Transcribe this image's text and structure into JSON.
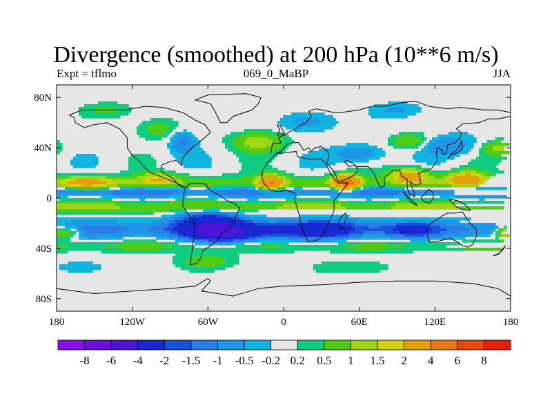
{
  "title": "Divergence (smoothed) at 200 hPa (10**6 m/s)",
  "subtitle_left": "Expt = tflmo",
  "subtitle_center": "069_0_MaBP",
  "subtitle_right": "JJA",
  "axes": {
    "x_ticks": [
      {
        "lon": -180,
        "label": "180"
      },
      {
        "lon": -120,
        "label": "120W"
      },
      {
        "lon": -60,
        "label": "60W"
      },
      {
        "lon": 0,
        "label": "0"
      },
      {
        "lon": 60,
        "label": "60E"
      },
      {
        "lon": 120,
        "label": "120E"
      },
      {
        "lon": 180,
        "label": "180"
      }
    ],
    "y_ticks": [
      {
        "lat": 80,
        "label": "80N"
      },
      {
        "lat": 40,
        "label": "40N"
      },
      {
        "lat": 0,
        "label": "0"
      },
      {
        "lat": -40,
        "label": "40S"
      },
      {
        "lat": -80,
        "label": "80S"
      }
    ],
    "lon_range": [
      -180,
      180
    ],
    "lat_range": [
      -90,
      90
    ]
  },
  "colorbar": {
    "colors": [
      "#8a10e6",
      "#6a10dc",
      "#4c14d8",
      "#1a28d2",
      "#1850e0",
      "#2a7ce6",
      "#1f96e6",
      "#10b4e0",
      "#e6e6e6",
      "#10cc80",
      "#50cc14",
      "#9ed614",
      "#d2d20a",
      "#e6a00a",
      "#e67a14",
      "#e64a0a",
      "#e61e0a"
    ],
    "labels": [
      "-8",
      "-6",
      "-4",
      "-2",
      "-1.5",
      "-1",
      "-0.5",
      "-0.2",
      "0.2",
      "0.5",
      "1",
      "1.5",
      "2",
      "4",
      "6",
      "8"
    ]
  },
  "field": {
    "levels": [
      -8,
      -6,
      -4,
      -2,
      -1.5,
      -1,
      -0.5,
      -0.2,
      0.2,
      0.5,
      1,
      1.5,
      2,
      4,
      6,
      8
    ],
    "bands": [
      {
        "lat": 5,
        "width": 4,
        "amp": -1.4
      },
      {
        "lat": -7,
        "width": 5,
        "amp": 1.1
      },
      {
        "lat": -25,
        "width": 7,
        "amp": -1.2
      },
      {
        "lat": 12,
        "width": 6,
        "amp": 0.8
      },
      {
        "lat": -38,
        "width": 5,
        "amp": 0.6
      }
    ],
    "blobs": [
      {
        "lon": -155,
        "lat": 12,
        "slon": 25,
        "slat": 5,
        "amp": 1.8
      },
      {
        "lon": -100,
        "lat": 15,
        "slon": 15,
        "slat": 5,
        "amp": 1.6
      },
      {
        "lon": -10,
        "lat": 12,
        "slon": 10,
        "slat": 6,
        "amp": 3.5
      },
      {
        "lon": 50,
        "lat": 12,
        "slon": 10,
        "slat": 6,
        "amp": 4.5
      },
      {
        "lon": 100,
        "lat": 18,
        "slon": 15,
        "slat": 6,
        "amp": 2.5
      },
      {
        "lon": 145,
        "lat": 15,
        "slon": 15,
        "slat": 6,
        "amp": 2.5
      },
      {
        "lon": 175,
        "lat": -27,
        "slon": 8,
        "slat": 5,
        "amp": 2.2
      },
      {
        "lon": -170,
        "lat": -27,
        "slon": 10,
        "slat": 5,
        "amp": 1.8
      },
      {
        "lon": -45,
        "lat": -27,
        "slon": 28,
        "slat": 8,
        "amp": -3.5
      },
      {
        "lon": -60,
        "lat": -18,
        "slon": 25,
        "slat": 10,
        "amp": -2.2
      },
      {
        "lon": 30,
        "lat": -25,
        "slon": 35,
        "slat": 8,
        "amp": -1.8
      },
      {
        "lon": 100,
        "lat": -25,
        "slon": 20,
        "slat": 6,
        "amp": -1.2
      },
      {
        "lon": -20,
        "lat": 45,
        "slon": 20,
        "slat": 8,
        "amp": 1.4
      },
      {
        "lon": -80,
        "lat": 45,
        "slon": 10,
        "slat": 10,
        "amp": -1.1
      },
      {
        "lon": 130,
        "lat": 42,
        "slon": 20,
        "slat": 8,
        "amp": -1.0
      },
      {
        "lon": 170,
        "lat": 40,
        "slon": 12,
        "slat": 6,
        "amp": 1.1
      },
      {
        "lon": 60,
        "lat": 35,
        "slon": 20,
        "slat": 7,
        "amp": -1.0
      },
      {
        "lon": 100,
        "lat": 45,
        "slon": 15,
        "slat": 6,
        "amp": 1.0
      },
      {
        "lon": -100,
        "lat": 55,
        "slon": 18,
        "slat": 8,
        "amp": 0.8
      },
      {
        "lon": 20,
        "lat": 60,
        "slon": 20,
        "slat": 8,
        "amp": -0.8
      },
      {
        "lon": -140,
        "lat": 70,
        "slon": 20,
        "slat": 6,
        "amp": 0.6
      },
      {
        "lon": 90,
        "lat": 70,
        "slon": 20,
        "slat": 6,
        "amp": -0.6
      },
      {
        "lon": -60,
        "lat": -50,
        "slon": 25,
        "slat": 6,
        "amp": 0.7
      },
      {
        "lon": 60,
        "lat": -55,
        "slon": 25,
        "slat": 6,
        "amp": 0.6
      },
      {
        "lon": -160,
        "lat": -55,
        "slon": 20,
        "slat": 6,
        "amp": -0.5
      }
    ]
  },
  "coastlines": [
    [
      [
        -170,
        66
      ],
      [
        -160,
        70
      ],
      [
        -140,
        70
      ],
      [
        -125,
        70
      ],
      [
        -110,
        73
      ],
      [
        -95,
        72
      ],
      [
        -80,
        68
      ],
      [
        -70,
        62
      ],
      [
        -62,
        58
      ],
      [
        -58,
        52
      ],
      [
        -66,
        45
      ],
      [
        -70,
        42
      ],
      [
        -76,
        37
      ],
      [
        -80,
        32
      ],
      [
        -81,
        26
      ],
      [
        -85,
        30
      ],
      [
        -90,
        29
      ],
      [
        -97,
        26
      ],
      [
        -97,
        21
      ],
      [
        -92,
        18
      ],
      [
        -87,
        15
      ],
      [
        -83,
        10
      ],
      [
        -78,
        8
      ],
      [
        -85,
        12
      ],
      [
        -92,
        15
      ],
      [
        -105,
        20
      ],
      [
        -110,
        24
      ],
      [
        -115,
        30
      ],
      [
        -120,
        34
      ],
      [
        -124,
        40
      ],
      [
        -124,
        48
      ],
      [
        -130,
        55
      ],
      [
        -140,
        60
      ],
      [
        -152,
        58
      ],
      [
        -158,
        56
      ],
      [
        -165,
        60
      ],
      [
        -166,
        64
      ],
      [
        -170,
        66
      ]
    ],
    [
      [
        -78,
        8
      ],
      [
        -75,
        11
      ],
      [
        -70,
        12
      ],
      [
        -62,
        11
      ],
      [
        -58,
        6
      ],
      [
        -50,
        2
      ],
      [
        -45,
        -2
      ],
      [
        -38,
        -5
      ],
      [
        -35,
        -8
      ],
      [
        -38,
        -15
      ],
      [
        -40,
        -22
      ],
      [
        -48,
        -27
      ],
      [
        -53,
        -34
      ],
      [
        -58,
        -38
      ],
      [
        -64,
        -42
      ],
      [
        -66,
        -48
      ],
      [
        -69,
        -52
      ],
      [
        -74,
        -53
      ],
      [
        -73,
        -45
      ],
      [
        -72,
        -37
      ],
      [
        -71,
        -30
      ],
      [
        -70,
        -20
      ],
      [
        -75,
        -14
      ],
      [
        -80,
        -6
      ],
      [
        -80,
        -2
      ],
      [
        -78,
        8
      ]
    ],
    [
      [
        -17,
        15
      ],
      [
        -17,
        21
      ],
      [
        -13,
        28
      ],
      [
        -10,
        31
      ],
      [
        -6,
        35
      ],
      [
        0,
        36
      ],
      [
        10,
        37
      ],
      [
        11,
        33
      ],
      [
        20,
        31
      ],
      [
        30,
        31
      ],
      [
        33,
        28
      ],
      [
        35,
        24
      ],
      [
        38,
        18
      ],
      [
        43,
        12
      ],
      [
        51,
        12
      ],
      [
        45,
        4
      ],
      [
        40,
        -2
      ],
      [
        40,
        -10
      ],
      [
        35,
        -22
      ],
      [
        32,
        -28
      ],
      [
        28,
        -33
      ],
      [
        20,
        -35
      ],
      [
        18,
        -32
      ],
      [
        14,
        -22
      ],
      [
        12,
        -12
      ],
      [
        9,
        -2
      ],
      [
        9,
        4
      ],
      [
        3,
        6
      ],
      [
        -5,
        5
      ],
      [
        -10,
        6
      ],
      [
        -15,
        11
      ],
      [
        -17,
        15
      ]
    ],
    [
      [
        -10,
        36
      ],
      [
        -9,
        43
      ],
      [
        -2,
        44
      ],
      [
        -4,
        48
      ],
      [
        2,
        51
      ],
      [
        5,
        53
      ],
      [
        10,
        55
      ],
      [
        12,
        57
      ],
      [
        18,
        60
      ],
      [
        22,
        65
      ],
      [
        20,
        69
      ],
      [
        26,
        71
      ],
      [
        40,
        68
      ],
      [
        45,
        68
      ],
      [
        60,
        70
      ],
      [
        70,
        73
      ],
      [
        80,
        73
      ],
      [
        95,
        76
      ],
      [
        105,
        77
      ],
      [
        115,
        73
      ],
      [
        130,
        71
      ],
      [
        140,
        72
      ],
      [
        150,
        71
      ],
      [
        160,
        70
      ],
      [
        170,
        70
      ],
      [
        180,
        68
      ]
    ],
    [
      [
        35,
        37
      ],
      [
        30,
        41
      ],
      [
        25,
        40
      ],
      [
        22,
        37
      ],
      [
        20,
        40
      ],
      [
        16,
        38
      ],
      [
        14,
        41
      ],
      [
        12,
        44
      ],
      [
        8,
        44
      ],
      [
        3,
        43
      ],
      [
        -2,
        37
      ],
      [
        -6,
        36
      ]
    ],
    [
      [
        35,
        37
      ],
      [
        36,
        34
      ],
      [
        35,
        30
      ],
      [
        34,
        28
      ],
      [
        40,
        21
      ],
      [
        43,
        14
      ],
      [
        45,
        13
      ],
      [
        52,
        16
      ],
      [
        57,
        19
      ],
      [
        59,
        23
      ],
      [
        56,
        27
      ],
      [
        50,
        30
      ],
      [
        48,
        29
      ],
      [
        52,
        25
      ],
      [
        56,
        26
      ],
      [
        58,
        25
      ],
      [
        62,
        25
      ],
      [
        67,
        25
      ],
      [
        70,
        22
      ],
      [
        72,
        19
      ],
      [
        74,
        14
      ],
      [
        77,
        8
      ],
      [
        80,
        10
      ],
      [
        80,
        16
      ],
      [
        87,
        22
      ],
      [
        92,
        22
      ],
      [
        94,
        17
      ],
      [
        98,
        15
      ],
      [
        98,
        8
      ],
      [
        100,
        3
      ],
      [
        104,
        1
      ],
      [
        103,
        6
      ],
      [
        100,
        13
      ],
      [
        105,
        10
      ],
      [
        109,
        12
      ],
      [
        107,
        20
      ],
      [
        110,
        21
      ],
      [
        117,
        23
      ],
      [
        120,
        27
      ],
      [
        122,
        30
      ],
      [
        121,
        35
      ],
      [
        122,
        40
      ],
      [
        126,
        38
      ],
      [
        126,
        35
      ],
      [
        129,
        35
      ],
      [
        130,
        42
      ],
      [
        136,
        44
      ],
      [
        140,
        48
      ],
      [
        141,
        52
      ],
      [
        137,
        55
      ],
      [
        142,
        59
      ],
      [
        155,
        60
      ],
      [
        163,
        63
      ],
      [
        170,
        63
      ],
      [
        180,
        65
      ]
    ],
    [
      [
        114,
        -22
      ],
      [
        114,
        -30
      ],
      [
        116,
        -35
      ],
      [
        124,
        -34
      ],
      [
        132,
        -32
      ],
      [
        138,
        -35
      ],
      [
        142,
        -38
      ],
      [
        146,
        -39
      ],
      [
        150,
        -37
      ],
      [
        153,
        -30
      ],
      [
        153,
        -25
      ],
      [
        146,
        -18
      ],
      [
        142,
        -11
      ],
      [
        136,
        -12
      ],
      [
        130,
        -12
      ],
      [
        126,
        -14
      ],
      [
        122,
        -17
      ],
      [
        114,
        -22
      ]
    ],
    [
      [
        -50,
        60
      ],
      [
        -45,
        60
      ],
      [
        -40,
        65
      ],
      [
        -25,
        70
      ],
      [
        -20,
        75
      ],
      [
        -18,
        80
      ],
      [
        -30,
        83
      ],
      [
        -60,
        82
      ],
      [
        -70,
        78
      ],
      [
        -58,
        75
      ],
      [
        -55,
        70
      ],
      [
        -50,
        60
      ]
    ],
    [
      [
        130,
        31
      ],
      [
        132,
        34
      ],
      [
        136,
        35
      ],
      [
        141,
        38
      ],
      [
        142,
        41
      ],
      [
        141,
        45
      ],
      [
        140,
        42
      ],
      [
        137,
        38
      ],
      [
        133,
        35
      ],
      [
        130,
        31
      ]
    ],
    [
      [
        95,
        5
      ],
      [
        100,
        0
      ],
      [
        104,
        -4
      ],
      [
        106,
        -6
      ],
      [
        102,
        -4
      ],
      [
        98,
        0
      ],
      [
        95,
        5
      ]
    ],
    [
      [
        109,
        1
      ],
      [
        111,
        -3
      ],
      [
        116,
        -4
      ],
      [
        119,
        0
      ],
      [
        118,
        5
      ],
      [
        115,
        7
      ],
      [
        112,
        3
      ],
      [
        109,
        1
      ]
    ],
    [
      [
        131,
        -1
      ],
      [
        138,
        -2
      ],
      [
        145,
        -6
      ],
      [
        148,
        -10
      ],
      [
        142,
        -9
      ],
      [
        137,
        -7
      ],
      [
        131,
        -1
      ]
    ],
    [
      [
        44,
        -25
      ],
      [
        47,
        -24
      ],
      [
        50,
        -15
      ],
      [
        49,
        -12
      ],
      [
        44,
        -17
      ],
      [
        44,
        -25
      ]
    ],
    [
      [
        -180,
        -72
      ],
      [
        -150,
        -76
      ],
      [
        -120,
        -74
      ],
      [
        -90,
        -72
      ],
      [
        -70,
        -70
      ],
      [
        -60,
        -64
      ],
      [
        -58,
        -66
      ],
      [
        -65,
        -74
      ],
      [
        -40,
        -78
      ],
      [
        -20,
        -72
      ],
      [
        0,
        -70
      ],
      [
        30,
        -69
      ],
      [
        60,
        -67
      ],
      [
        90,
        -66
      ],
      [
        120,
        -66
      ],
      [
        150,
        -68
      ],
      [
        170,
        -72
      ],
      [
        180,
        -78
      ]
    ],
    [
      [
        166,
        -46
      ],
      [
        171,
        -44
      ],
      [
        174,
        -40
      ],
      [
        176,
        -38
      ],
      [
        174,
        -41
      ],
      [
        170,
        -45
      ],
      [
        166,
        -46
      ]
    ],
    [
      [
        -5,
        50
      ],
      [
        -3,
        54
      ],
      [
        -5,
        58
      ],
      [
        -3,
        58
      ],
      [
        0,
        53
      ],
      [
        1,
        51
      ],
      [
        -5,
        50
      ]
    ]
  ]
}
